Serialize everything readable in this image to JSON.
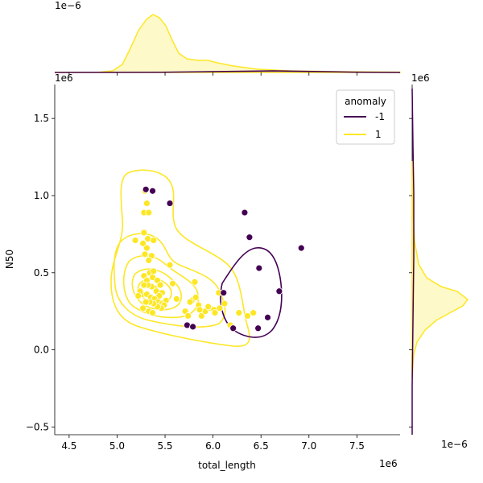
{
  "chart_data": {
    "type": "scatter",
    "kind": "jointplot (scatter + KDE contours + marginal KDE)",
    "xlabel": "total_length",
    "ylabel": "N50",
    "x_offset_text": "1e6",
    "y_offset_text": "1e6",
    "top_marginal_offset_text": "1e−6",
    "right_marginal_x_offset_text": "1e6",
    "right_marginal_density_offset_text": "1e−6",
    "xlim": [
      4.35,
      7.95
    ],
    "ylim": [
      -0.55,
      1.72
    ],
    "x_ticks": [
      "4.5",
      "5.0",
      "5.5",
      "6.0",
      "6.5",
      "7.0",
      "7.5"
    ],
    "y_ticks": [
      "−0.5",
      "0.0",
      "0.5",
      "1.0",
      "1.5"
    ],
    "grid": false,
    "legend": {
      "title": "anomaly",
      "placement": "top-right",
      "entries": [
        {
          "label": "-1",
          "color": "#440154"
        },
        {
          "label": "1",
          "color": "#fde725"
        }
      ]
    },
    "series": [
      {
        "name": "-1",
        "color": "#440154",
        "x": [
          5.3,
          5.37,
          5.55,
          6.33,
          6.38,
          6.92,
          6.48,
          6.69,
          6.11,
          6.21,
          6.57,
          6.47,
          5.73,
          5.79
        ],
        "y": [
          1.04,
          1.03,
          0.95,
          0.89,
          0.73,
          0.66,
          0.53,
          0.38,
          0.37,
          0.14,
          0.21,
          0.14,
          0.16,
          0.15
        ]
      },
      {
        "name": "1",
        "color": "#fde725",
        "x": [
          5.29,
          5.31,
          5.28,
          5.32,
          5.38,
          5.19,
          5.27,
          5.31,
          5.36,
          5.29,
          5.33,
          5.28,
          5.31,
          5.34,
          5.37,
          5.38,
          5.42,
          5.45,
          5.39,
          5.41,
          5.47,
          5.44,
          5.36,
          5.32,
          5.28,
          5.26,
          5.24,
          5.22,
          5.31,
          5.35,
          5.39,
          5.43,
          5.47,
          5.51,
          5.49,
          5.46,
          5.42,
          5.38,
          5.34,
          5.3,
          5.27,
          5.33,
          5.37,
          5.55,
          5.58,
          5.62,
          5.71,
          5.74,
          5.78,
          5.82,
          5.85,
          5.88,
          5.92,
          5.97,
          6.01,
          6.07,
          6.12,
          6.18,
          6.27,
          6.36,
          6.42,
          5.81,
          5.86,
          5.76,
          6.06,
          6.02,
          5.95,
          5.3,
          5.28,
          5.33
        ],
        "y": [
          1.03,
          0.95,
          0.76,
          0.72,
          0.71,
          0.71,
          0.69,
          0.66,
          0.61,
          0.62,
          0.58,
          0.48,
          0.45,
          0.5,
          0.47,
          0.51,
          0.45,
          0.42,
          0.4,
          0.38,
          0.37,
          0.35,
          0.41,
          0.42,
          0.42,
          0.36,
          0.38,
          0.35,
          0.36,
          0.34,
          0.33,
          0.31,
          0.3,
          0.32,
          0.29,
          0.27,
          0.28,
          0.3,
          0.31,
          0.31,
          0.27,
          0.25,
          0.24,
          0.55,
          0.43,
          0.33,
          0.25,
          0.22,
          0.32,
          0.34,
          0.29,
          0.22,
          0.25,
          0.27,
          0.26,
          0.27,
          0.3,
          0.16,
          0.24,
          0.22,
          0.24,
          0.44,
          0.26,
          0.31,
          0.37,
          0.24,
          0.28,
          0.89,
          0.89,
          0.89
        ]
      }
    ]
  }
}
